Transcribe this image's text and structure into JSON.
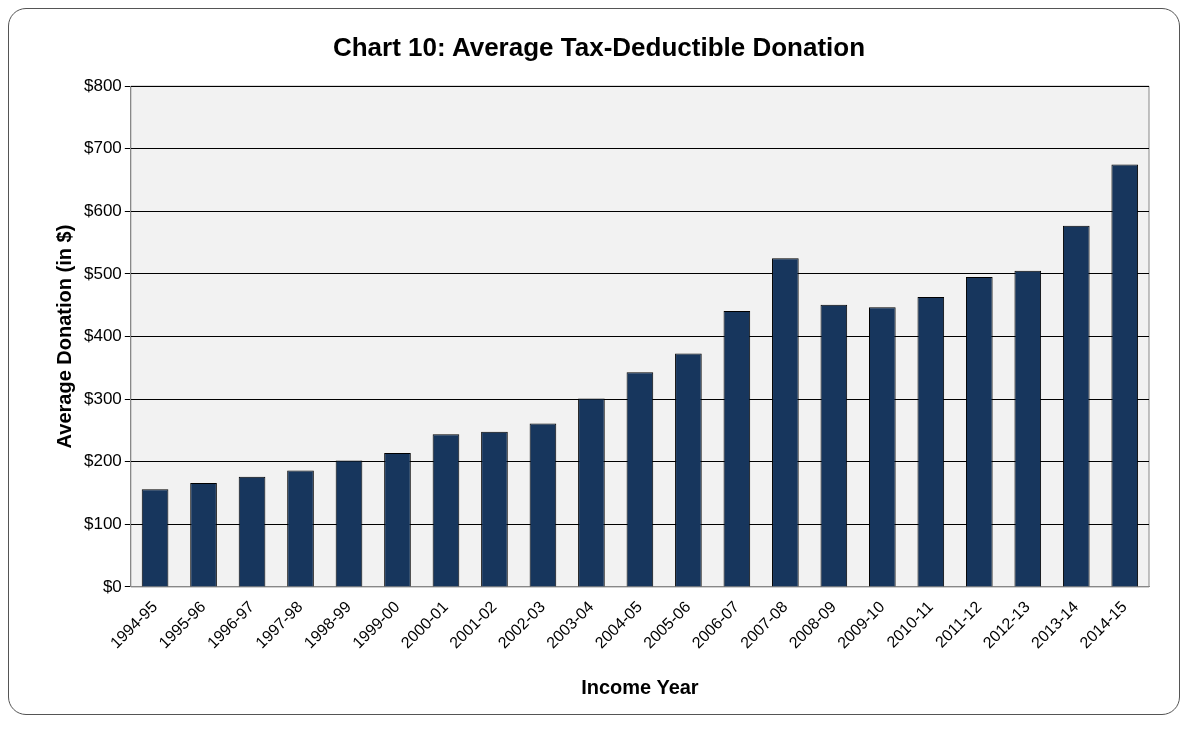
{
  "chart_data": {
    "type": "bar",
    "title": "Chart 10: Average Tax-Deductible Donation",
    "xlabel": "Income Year",
    "ylabel": "Average Donation (in $)",
    "categories": [
      "1994-95",
      "1995-96",
      "1996-97",
      "1997-98",
      "1998-99",
      "1999-00",
      "2000-01",
      "2001-02",
      "2002-03",
      "2003-04",
      "2004-05",
      "2005-06",
      "2006-07",
      "2007-08",
      "2008-09",
      "2009-10",
      "2010-11",
      "2011-12",
      "2012-13",
      "2013-14",
      "2014-15"
    ],
    "values": [
      156,
      166,
      176,
      186,
      202,
      214,
      244,
      248,
      261,
      301,
      343,
      373,
      441,
      525,
      451,
      447,
      463,
      495,
      505,
      577,
      675
    ],
    "color": "#17365d",
    "ylim": [
      0,
      800
    ],
    "yticks": [
      {
        "value": 0,
        "label": "$0"
      },
      {
        "value": 100,
        "label": "$100"
      },
      {
        "value": 200,
        "label": "$200"
      },
      {
        "value": 300,
        "label": "$300"
      },
      {
        "value": 400,
        "label": "$400"
      },
      {
        "value": 500,
        "label": "$500"
      },
      {
        "value": 600,
        "label": "$600"
      },
      {
        "value": 700,
        "label": "$700"
      },
      {
        "value": 800,
        "label": "$800"
      }
    ],
    "grid": "y",
    "legend": false
  }
}
